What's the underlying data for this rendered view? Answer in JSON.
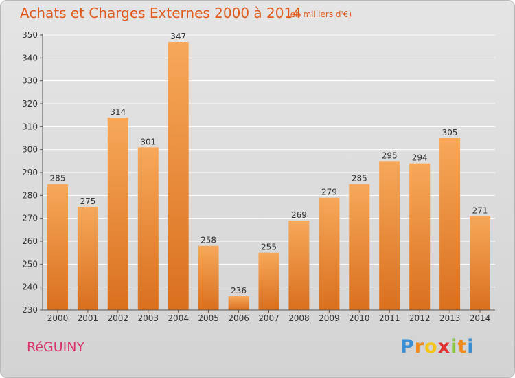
{
  "header": {
    "title": "Achats et Charges Externes 2000 à 2014",
    "subtitle": "(en milliers d'€)"
  },
  "footer": {
    "commune": "RéGUINY",
    "logo": {
      "letters": [
        "P",
        "r",
        "o",
        "x",
        "i",
        "t",
        "i"
      ],
      "colors": [
        "#3b8fd4",
        "#f08a1c",
        "#f5c51a",
        "#e0302f",
        "#8cc63f",
        "#f08a1c",
        "#3b8fd4"
      ]
    }
  },
  "colors": {
    "bar_light": "#f7a85a",
    "bar_dark": "#d9701e",
    "grid": "#ffffff",
    "axis": "#555555"
  },
  "chart_data": {
    "type": "bar",
    "title": "Achats et Charges Externes 2000 à 2014",
    "subtitle": "(en milliers d'€)",
    "categories": [
      "2000",
      "2001",
      "2002",
      "2003",
      "2004",
      "2005",
      "2006",
      "2007",
      "2008",
      "2009",
      "2010",
      "2011",
      "2012",
      "2013",
      "2014"
    ],
    "values": [
      285,
      275,
      314,
      301,
      347,
      258,
      236,
      255,
      269,
      279,
      285,
      295,
      294,
      305,
      271
    ],
    "ylim": [
      230,
      350
    ],
    "yticks": [
      230,
      240,
      250,
      260,
      270,
      280,
      290,
      300,
      310,
      320,
      330,
      340,
      350
    ],
    "grid": true,
    "data_labels": true
  }
}
